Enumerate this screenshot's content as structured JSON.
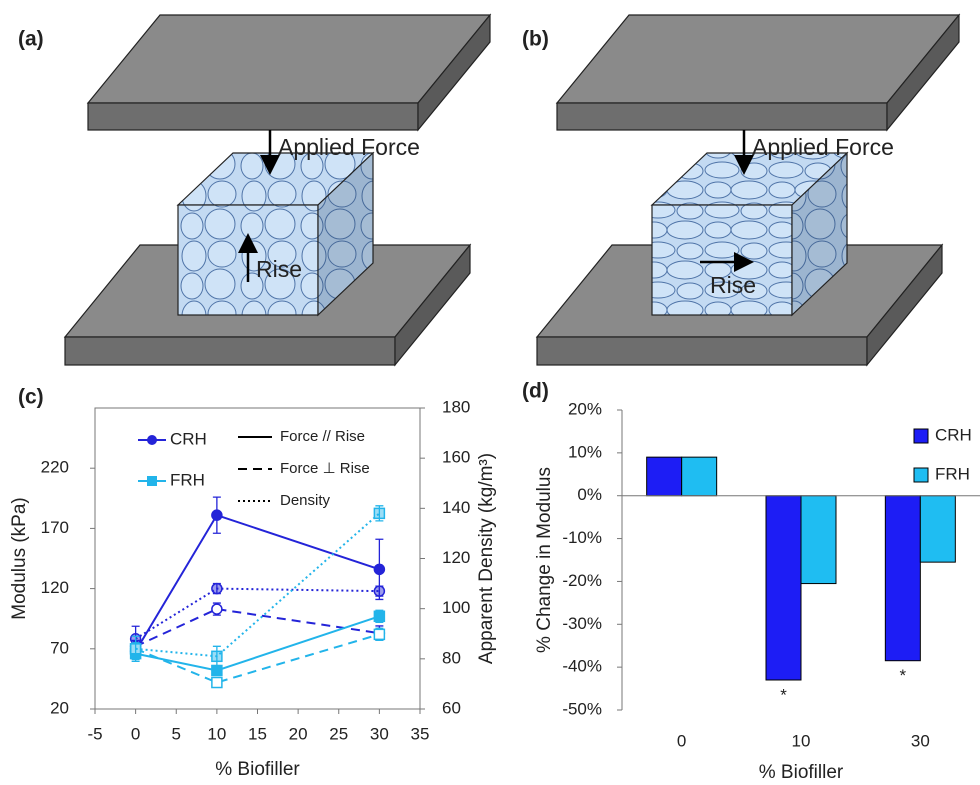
{
  "panels": [
    {
      "label": "(a)",
      "force": "Applied Force",
      "rise": "Rise"
    },
    {
      "label": "(b)",
      "force": "Applied Force",
      "rise": "Rise"
    }
  ],
  "chart_data": [
    {
      "type": "line",
      "label": "(c)",
      "x_label": "% Biofiller",
      "y_label": "Modulus (kPa)",
      "y2_label": "Apparent Density (kg/m³)",
      "x": [
        0,
        10,
        30
      ],
      "xlim": [
        -5,
        35
      ],
      "xticks": [
        -5,
        0,
        5,
        10,
        15,
        20,
        25,
        30,
        35
      ],
      "ylim": [
        20,
        270
      ],
      "yticks": [
        20,
        70,
        120,
        170,
        220
      ],
      "y2lim": [
        60,
        180
      ],
      "y2ticks": [
        60,
        80,
        100,
        120,
        140,
        160,
        180
      ],
      "groups": [
        {
          "name": "CRH",
          "color": "#2424d8",
          "marker": "circle"
        },
        {
          "name": "FRH",
          "color": "#22b4ea",
          "marker": "square"
        }
      ],
      "styles": [
        {
          "name": "Force // Rise",
          "dash": "solid",
          "fill": "filled"
        },
        {
          "name": "Force ⊥ Rise",
          "dash": "dashed",
          "fill": "hollow"
        },
        {
          "name": "Density",
          "dash": "dotted",
          "fill": "half",
          "axis": "y2"
        }
      ],
      "values": [
        [
          [
            68,
            181,
            136
          ],
          [
            72,
            103,
            83
          ],
          [
            88,
            108,
            107
          ]
        ],
        [
          [
            66,
            52,
            97
          ],
          [
            70,
            42,
            82
          ],
          [
            84,
            81,
            138
          ]
        ]
      ],
      "errors": [
        [
          [
            6,
            15,
            25
          ],
          [
            5,
            5,
            6
          ],
          [
            5,
            2,
            2
          ]
        ],
        [
          [
            5,
            4,
            5
          ],
          [
            5,
            4,
            5
          ],
          [
            5,
            4,
            3
          ]
        ]
      ]
    },
    {
      "type": "bar",
      "label": "(d)",
      "x_label": "% Biofiller",
      "y_label": "% Change in Modulus",
      "categories": [
        "0",
        "10",
        "30"
      ],
      "ylim": [
        -50,
        20
      ],
      "yticks": [
        {
          "value": -50,
          "label": "-50%"
        },
        {
          "value": -40,
          "label": "-40%"
        },
        {
          "value": -30,
          "label": "-30%"
        },
        {
          "value": -20,
          "label": "-20%"
        },
        {
          "value": -10,
          "label": "-10%"
        },
        {
          "value": 0,
          "label": "0%"
        },
        {
          "value": 10,
          "label": "10%"
        },
        {
          "value": 20,
          "label": "20%"
        }
      ],
      "series": [
        {
          "name": "CRH",
          "color": "#1d1df5",
          "values": [
            9,
            -43,
            -38.5
          ]
        },
        {
          "name": "FRH",
          "color": "#1fbdf2",
          "values": [
            9,
            -20.5,
            -15.5
          ]
        }
      ],
      "annotations": [
        {
          "text": "*",
          "category": "10",
          "series": "CRH"
        },
        {
          "text": "*",
          "category": "30",
          "series": "CRH"
        }
      ],
      "legend": "upper right"
    }
  ]
}
